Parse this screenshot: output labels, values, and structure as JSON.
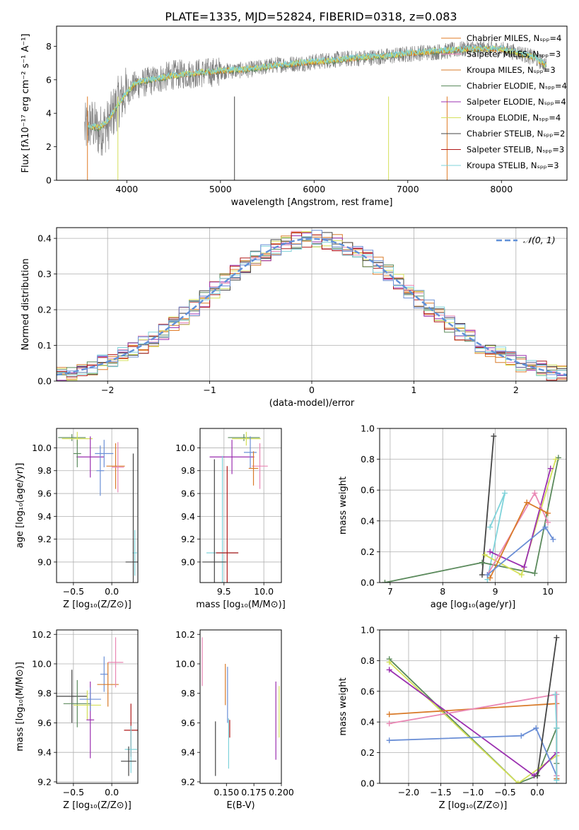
{
  "figure": {
    "title": "PLATE=1335, MJD=52824, FIBERID=0318, z=0.083"
  },
  "colors": {
    "cm": "#e07b26",
    "sm": "#e987b4",
    "km": "#d97b2a",
    "ce": "#5b8a5c",
    "se": "#9b30b0",
    "ke": "#d4e05a",
    "cs": "#444444",
    "ss": "#b01818",
    "ks": "#7fd3da",
    "blue": "#6b8fd6",
    "data": "#808080",
    "gauss": "#6090d8"
  },
  "chart_data": [
    {
      "id": "spectrum",
      "type": "line",
      "xlabel": "wavelength [Angstrom, rest frame]",
      "ylabel": "Flux [fλ10⁻¹⁷ erg cm⁻² s⁻¹ A⁻¹]",
      "xlim": [
        3250,
        8700
      ],
      "ylim": [
        0,
        9.2
      ],
      "xticks": [
        4000,
        5000,
        6000,
        7000,
        8000
      ],
      "yticks": [
        0,
        2,
        4,
        6,
        8
      ],
      "grid": false,
      "legend_position": "right",
      "observed": {
        "x": [
          3550,
          3620,
          3700,
          3800,
          3900,
          4000,
          4100,
          4300,
          4500,
          4800,
          5000,
          5300,
          5600,
          5900,
          6200,
          6500,
          6800,
          7100,
          7400,
          7700,
          8000,
          8200,
          8350,
          8480
        ],
        "y": [
          3.0,
          3.4,
          2.9,
          3.3,
          4.6,
          5.3,
          5.7,
          6.0,
          6.3,
          6.4,
          6.5,
          6.6,
          6.9,
          7.0,
          7.2,
          7.3,
          7.4,
          7.6,
          7.7,
          7.9,
          7.8,
          7.6,
          7.3,
          6.9
        ]
      },
      "model": {
        "x": [
          3580,
          3700,
          3800,
          3900,
          4000,
          4100,
          4300,
          4500,
          4800,
          5000,
          5300,
          5600,
          5900,
          6200,
          6500,
          6800,
          7100,
          7400,
          7700,
          8000,
          8200,
          8350,
          8480
        ],
        "y": [
          3.2,
          3.1,
          3.5,
          4.4,
          5.2,
          5.8,
          6.0,
          6.2,
          6.4,
          6.5,
          6.6,
          6.8,
          7.0,
          7.1,
          7.3,
          7.4,
          7.6,
          7.7,
          7.8,
          7.8,
          7.5,
          7.3,
          6.8
        ]
      },
      "legend": [
        {
          "label": "Chabrier MILES, Nₛₚₚ=4",
          "color_key": "cm"
        },
        {
          "label": "Salpeter MILES, Nₛₚₚ=3",
          "color_key": "sm"
        },
        {
          "label": "Kroupa MILES, Nₛₚₚ=3",
          "color_key": "km"
        },
        {
          "label": "Chabrier ELODIE, Nₛₚₚ=4",
          "color_key": "ce"
        },
        {
          "label": "Salpeter ELODIE, Nₛₚₚ=4",
          "color_key": "se"
        },
        {
          "label": "Kroupa ELODIE, Nₛₚₚ=4",
          "color_key": "ke"
        },
        {
          "label": "Chabrier STELIB, Nₛₚₚ=2",
          "color_key": "cs"
        },
        {
          "label": "Salpeter STELIB, Nₛₚₚ=3",
          "color_key": "ss"
        },
        {
          "label": "Kroupa STELIB, Nₛₚₚ=3",
          "color_key": "ks"
        }
      ]
    },
    {
      "id": "residuals",
      "type": "line",
      "xlabel": "(data-model)/error",
      "ylabel": "Normed distribution",
      "xlim": [
        -2.5,
        2.5
      ],
      "ylim": [
        0,
        0.43
      ],
      "xticks": [
        -2,
        -1,
        0,
        1,
        2
      ],
      "yticks": [
        0.0,
        0.1,
        0.2,
        0.3,
        0.4
      ],
      "grid": true,
      "legend_position": "top-right",
      "legend": [
        {
          "label": "𝒩(0, 1)",
          "color_key": "gauss"
        }
      ],
      "bin_width": 0.1
    },
    {
      "id": "age_vs_Z",
      "type": "scatter",
      "xlabel": "Z [log₁₀(Z/Z⊙)]",
      "ylabel": "age  [log₁₀(age/yr)]",
      "xlim": [
        -0.72,
        0.34
      ],
      "ylim": [
        8.82,
        10.17
      ],
      "xticks": [
        -0.5,
        0.0
      ],
      "yticks": [
        9.0,
        9.2,
        9.4,
        9.6,
        9.8,
        10.0
      ],
      "grid": true,
      "crosses": [
        {
          "x": -0.52,
          "xerr": 0.18,
          "y": 10.09,
          "yerr": 0.03,
          "color_key": "ce"
        },
        {
          "x": -0.45,
          "xerr": 0.2,
          "y": 10.08,
          "yerr": 0.06,
          "color_key": "ke"
        },
        {
          "x": -0.28,
          "xerr": 0.18,
          "y": 9.92,
          "yerr": 0.18,
          "color_key": "se"
        },
        {
          "x": -0.45,
          "xerr": 0.05,
          "y": 9.95,
          "yerr": 0.12,
          "color_key": "ce"
        },
        {
          "x": -0.1,
          "xerr": 0.12,
          "y": 9.95,
          "yerr": 0.12,
          "color_key": "blue"
        },
        {
          "x": -0.15,
          "xerr": 0.05,
          "y": 9.8,
          "yerr": 0.22,
          "color_key": "blue"
        },
        {
          "x": 0.05,
          "xerr": 0.12,
          "y": 9.84,
          "yerr": 0.2,
          "color_key": "km"
        },
        {
          "x": 0.08,
          "xerr": 0.08,
          "y": 9.83,
          "yerr": 0.22,
          "color_key": "sm"
        },
        {
          "x": 0.3,
          "xerr": 0.03,
          "y": 9.08,
          "yerr": 0.2,
          "color_key": "ks"
        },
        {
          "x": 0.28,
          "xerr": 0.1,
          "y": 9.0,
          "yerr": 0.95,
          "color_key": "cs"
        }
      ]
    },
    {
      "id": "age_vs_mass",
      "type": "scatter",
      "xlabel": "mass [log₁₀(M/M⊙)]",
      "ylabel": "",
      "xlim": [
        9.2,
        10.22
      ],
      "ylim": [
        8.82,
        10.17
      ],
      "xticks": [
        9.5,
        10.0
      ],
      "yticks": [
        9.0,
        9.2,
        9.4,
        9.6,
        9.8,
        10.0
      ],
      "grid": true,
      "crosses": [
        {
          "x": 9.75,
          "xerr": 0.2,
          "y": 10.09,
          "yerr": 0.03,
          "color_key": "ce"
        },
        {
          "x": 9.78,
          "xerr": 0.18,
          "y": 10.08,
          "yerr": 0.06,
          "color_key": "ke"
        },
        {
          "x": 9.6,
          "xerr": 0.28,
          "y": 9.92,
          "yerr": 0.15,
          "color_key": "se"
        },
        {
          "x": 9.83,
          "xerr": 0.08,
          "y": 9.96,
          "yerr": 0.14,
          "color_key": "blue"
        },
        {
          "x": 9.95,
          "xerr": 0.1,
          "y": 9.84,
          "yerr": 0.2,
          "color_key": "sm"
        },
        {
          "x": 9.87,
          "xerr": 0.06,
          "y": 9.82,
          "yerr": 0.15,
          "color_key": "km"
        },
        {
          "x": 9.48,
          "xerr": 0.2,
          "y": 9.08,
          "yerr": 0.85,
          "color_key": "ks"
        },
        {
          "x": 9.54,
          "xerr": 0.14,
          "y": 9.08,
          "yerr": 0.76,
          "color_key": "ss"
        },
        {
          "x": 9.38,
          "xerr": 0.15,
          "y": 9.0,
          "yerr": 0.9,
          "color_key": "cs"
        }
      ]
    },
    {
      "id": "weight_vs_age",
      "type": "line",
      "xlabel": "age  [log₁₀(age/yr)]",
      "ylabel": "mass weight",
      "xlim": [
        6.8,
        10.35
      ],
      "ylim": [
        0,
        1.0
      ],
      "xticks": [
        7,
        8,
        9,
        10
      ],
      "yticks": [
        0.0,
        0.2,
        0.4,
        0.6,
        0.8,
        1.0
      ],
      "grid": true,
      "series": [
        {
          "color_key": "cs",
          "x": [
            8.75,
            8.97
          ],
          "y": [
            0.05,
            0.95
          ]
        },
        {
          "color_key": "ks",
          "x": [
            8.85,
            9.18,
            8.9
          ],
          "y": [
            0.02,
            0.58,
            0.36
          ]
        },
        {
          "color_key": "ce",
          "x": [
            6.9,
            8.75,
            9.75,
            10.2
          ],
          "y": [
            0.0,
            0.13,
            0.06,
            0.81
          ]
        },
        {
          "color_key": "ke",
          "x": [
            8.8,
            9.5,
            10.15
          ],
          "y": [
            0.18,
            0.05,
            0.8
          ]
        },
        {
          "color_key": "se",
          "x": [
            8.9,
            9.55,
            10.05
          ],
          "y": [
            0.2,
            0.1,
            0.74
          ]
        },
        {
          "color_key": "sm",
          "x": [
            8.85,
            9.75,
            10.0
          ],
          "y": [
            0.05,
            0.58,
            0.39
          ]
        },
        {
          "color_key": "km",
          "x": [
            8.9,
            9.6,
            10.0
          ],
          "y": [
            0.03,
            0.52,
            0.45
          ]
        },
        {
          "color_key": "blue",
          "x": [
            8.85,
            9.95,
            10.1
          ],
          "y": [
            0.05,
            0.36,
            0.28
          ]
        }
      ]
    },
    {
      "id": "mass_vs_Z",
      "type": "scatter",
      "xlabel": "Z [log₁₀(Z/Z⊙)]",
      "ylabel": "mass [log₁₀(M/M⊙)]",
      "xlim": [
        -0.72,
        0.34
      ],
      "ylim": [
        9.19,
        10.23
      ],
      "xticks": [
        -0.5,
        0.0
      ],
      "yticks": [
        9.2,
        9.4,
        9.6,
        9.8,
        10.0,
        10.2
      ],
      "grid": true,
      "crosses": [
        {
          "x": -0.52,
          "xerr": 0.2,
          "y": 9.78,
          "yerr": 0.18,
          "color_key": "cs"
        },
        {
          "x": -0.45,
          "xerr": 0.18,
          "y": 9.73,
          "yerr": 0.16,
          "color_key": "ce"
        },
        {
          "x": -0.32,
          "xerr": 0.18,
          "y": 9.72,
          "yerr": 0.1,
          "color_key": "ke"
        },
        {
          "x": -0.28,
          "xerr": 0.05,
          "y": 9.62,
          "yerr": 0.26,
          "color_key": "se"
        },
        {
          "x": -0.28,
          "xerr": 0.14,
          "y": 9.76,
          "yerr": 0.08,
          "color_key": "blue"
        },
        {
          "x": -0.1,
          "xerr": 0.05,
          "y": 9.93,
          "yerr": 0.12,
          "color_key": "blue"
        },
        {
          "x": -0.05,
          "xerr": 0.14,
          "y": 9.86,
          "yerr": 0.15,
          "color_key": "km"
        },
        {
          "x": 0.05,
          "xerr": 0.1,
          "y": 10.01,
          "yerr": 0.17,
          "color_key": "sm"
        },
        {
          "x": 0.25,
          "xerr": 0.09,
          "y": 9.55,
          "yerr": 0.18,
          "color_key": "ss"
        },
        {
          "x": 0.25,
          "xerr": 0.08,
          "y": 9.42,
          "yerr": 0.16,
          "color_key": "ks"
        },
        {
          "x": 0.22,
          "xerr": 0.1,
          "y": 9.34,
          "yerr": 0.1,
          "color_key": "cs"
        }
      ]
    },
    {
      "id": "mass_vs_ebv",
      "type": "scatter",
      "xlabel": "E(B-V)",
      "ylabel": "",
      "xlim": [
        0.126,
        0.2
      ],
      "ylim": [
        9.19,
        10.23
      ],
      "xticks": [
        0.15,
        0.175,
        0.2
      ],
      "yticks": [
        9.2,
        9.4,
        9.6,
        9.8,
        10.0,
        10.2
      ],
      "grid": false,
      "bars": [
        {
          "x": 0.128,
          "y0": 9.85,
          "y1": 10.18,
          "color_key": "sm"
        },
        {
          "x": 0.14,
          "y0": 9.24,
          "y1": 9.61,
          "color_key": "cs"
        },
        {
          "x": 0.149,
          "y0": 9.72,
          "y1": 10.0,
          "color_key": "km"
        },
        {
          "x": 0.151,
          "y0": 9.6,
          "y1": 9.98,
          "color_key": "blue"
        },
        {
          "x": 0.153,
          "y0": 9.5,
          "y1": 9.62,
          "color_key": "ss"
        },
        {
          "x": 0.152,
          "y0": 9.29,
          "y1": 9.63,
          "color_key": "ks"
        },
        {
          "x": 0.195,
          "y0": 9.35,
          "y1": 9.88,
          "color_key": "se"
        },
        {
          "x": 0.198,
          "y0": 9.5,
          "y1": 9.85,
          "color_key": "ke"
        }
      ]
    },
    {
      "id": "weight_vs_Z",
      "type": "line",
      "xlabel": "Z [log₁₀(Z/Z⊙)]",
      "ylabel": "mass weight",
      "xlim": [
        -2.45,
        0.45
      ],
      "ylim": [
        0,
        1.0
      ],
      "xticks": [
        -2.0,
        -1.5,
        -1.0,
        -0.5,
        0.0
      ],
      "yticks": [
        0.0,
        0.2,
        0.4,
        0.6,
        0.8,
        1.0
      ],
      "grid": true,
      "series": [
        {
          "color_key": "ce",
          "x": [
            -2.3,
            -0.3,
            0.0,
            0.3,
            0.3
          ],
          "y": [
            0.81,
            0.0,
            0.05,
            0.36,
            0.13
          ]
        },
        {
          "color_key": "ke",
          "x": [
            -2.3,
            -0.3,
            0.3
          ],
          "y": [
            0.79,
            0.0,
            0.18
          ]
        },
        {
          "color_key": "se",
          "x": [
            -2.3,
            -0.05,
            0.3
          ],
          "y": [
            0.74,
            0.05,
            0.2
          ]
        },
        {
          "color_key": "blue",
          "x": [
            -2.3,
            -0.25,
            -0.02,
            0.3,
            0.3
          ],
          "y": [
            0.28,
            0.31,
            0.36,
            0.05,
            0.03
          ]
        },
        {
          "color_key": "km",
          "x": [
            -2.3,
            0.3,
            0.3
          ],
          "y": [
            0.45,
            0.52,
            0.03
          ]
        },
        {
          "color_key": "sm",
          "x": [
            -2.3,
            0.3,
            0.3
          ],
          "y": [
            0.39,
            0.58,
            0.05
          ]
        },
        {
          "color_key": "cs",
          "x": [
            0.0,
            0.3
          ],
          "y": [
            0.05,
            0.95
          ]
        },
        {
          "color_key": "ks",
          "x": [
            0.28,
            0.3,
            0.3
          ],
          "y": [
            0.58,
            0.36,
            0.02
          ]
        }
      ]
    }
  ]
}
